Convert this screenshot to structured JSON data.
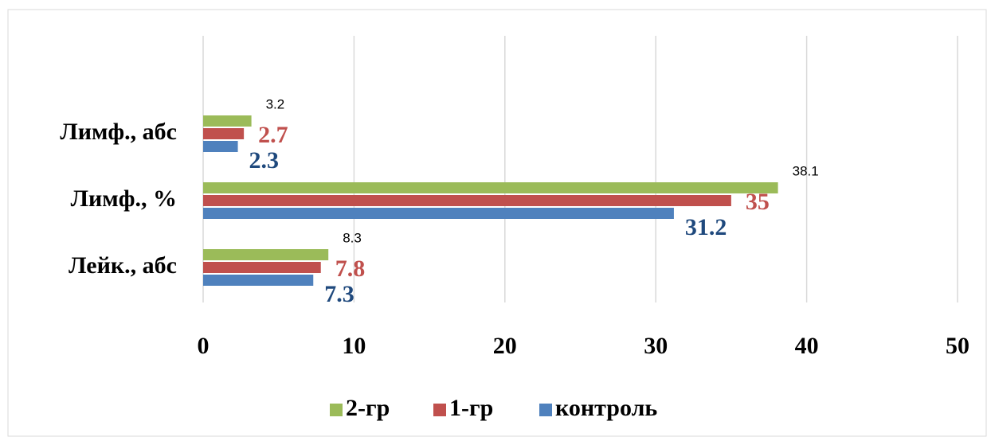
{
  "chart_data": {
    "type": "bar",
    "orientation": "horizontal",
    "categories": [
      "Лимф., абс",
      "Лимф., %",
      "Лейк., абс"
    ],
    "series": [
      {
        "name": "2-гр",
        "color": "#9bbb59",
        "values": [
          3.2,
          38.1,
          8.3
        ]
      },
      {
        "name": "1-гр",
        "color": "#c0504d",
        "values": [
          2.7,
          35,
          7.8
        ]
      },
      {
        "name": "контроль",
        "color": "#4f81bd",
        "values": [
          2.3,
          31.2,
          7.3
        ]
      }
    ],
    "xlim": [
      0,
      50
    ],
    "xticks": [
      0,
      10,
      20,
      30,
      40,
      50
    ],
    "grid": true,
    "legend": "bottom"
  }
}
